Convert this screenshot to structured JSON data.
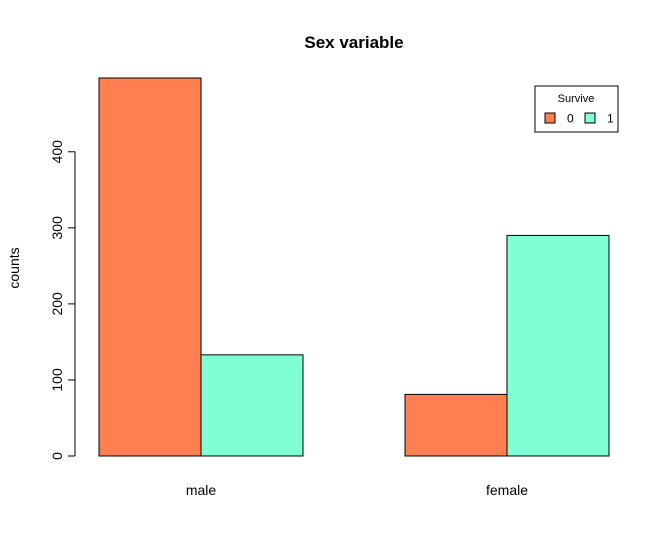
{
  "chart_data": {
    "type": "bar",
    "title": "Sex variable",
    "xlabel": "",
    "ylabel": "counts",
    "categories": [
      "male",
      "female"
    ],
    "series": [
      {
        "name": "0",
        "values": [
          497,
          81
        ],
        "color": "#FF7F50"
      },
      {
        "name": "1",
        "values": [
          133,
          290
        ],
        "color": "#7FFFD4"
      }
    ],
    "yticks": [
      0,
      100,
      200,
      300,
      400
    ],
    "ylim": [
      0,
      497
    ],
    "legend": {
      "title": "Survive",
      "position": "top-right"
    },
    "grid": false
  }
}
